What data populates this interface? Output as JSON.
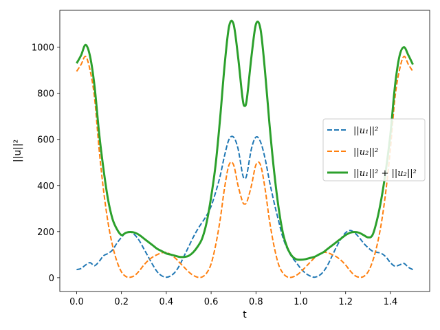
{
  "chart_data": {
    "type": "line",
    "xlabel": "t",
    "ylabel": "||u||²",
    "xlim": [
      -0.075,
      1.575
    ],
    "ylim": [
      -60,
      1160
    ],
    "xticks": [
      0.0,
      0.2,
      0.4,
      0.6,
      0.8,
      1.0,
      1.2,
      1.4
    ],
    "xtick_labels": [
      "0.0",
      "0.2",
      "0.4",
      "0.6",
      "0.8",
      "1.0",
      "1.2",
      "1.4"
    ],
    "yticks": [
      0,
      200,
      400,
      600,
      800,
      1000
    ],
    "ytick_labels": [
      "0",
      "200",
      "400",
      "600",
      "800",
      "1000"
    ],
    "grid": false,
    "legend_position": "center-right",
    "series": [
      {
        "name": "||u₁||²",
        "color": "#1f77b4",
        "style": "dashed",
        "x": [
          0.0,
          0.02,
          0.04,
          0.06,
          0.08,
          0.1,
          0.12,
          0.14,
          0.16,
          0.18,
          0.2,
          0.22,
          0.24,
          0.26,
          0.28,
          0.3,
          0.32,
          0.34,
          0.36,
          0.38,
          0.4,
          0.42,
          0.44,
          0.46,
          0.48,
          0.5,
          0.52,
          0.54,
          0.56,
          0.58,
          0.6,
          0.62,
          0.64,
          0.66,
          0.68,
          0.7,
          0.72,
          0.74,
          0.75,
          0.76,
          0.78,
          0.8,
          0.82,
          0.84,
          0.86,
          0.88,
          0.9,
          0.92,
          0.94,
          0.96,
          0.98,
          1.0,
          1.02,
          1.04,
          1.06,
          1.08,
          1.1,
          1.12,
          1.14,
          1.16,
          1.18,
          1.2,
          1.22,
          1.24,
          1.26,
          1.28,
          1.3,
          1.32,
          1.34,
          1.36,
          1.38,
          1.4,
          1.42,
          1.44,
          1.46,
          1.48,
          1.5
        ],
        "values": [
          35,
          40,
          55,
          65,
          52,
          70,
          95,
          105,
          120,
          150,
          175,
          195,
          198,
          185,
          160,
          125,
          90,
          55,
          25,
          8,
          2,
          8,
          25,
          55,
          95,
          135,
          175,
          210,
          240,
          270,
          310,
          370,
          440,
          530,
          600,
          610,
          560,
          450,
          430,
          450,
          560,
          610,
          590,
          520,
          420,
          330,
          250,
          175,
          125,
          90,
          65,
          40,
          20,
          8,
          2,
          8,
          25,
          55,
          95,
          135,
          170,
          195,
          205,
          195,
          175,
          150,
          130,
          115,
          110,
          105,
          90,
          65,
          50,
          55,
          62,
          45,
          35
        ]
      },
      {
        "name": "||u₂||²",
        "color": "#ff7f0e",
        "style": "dashed",
        "x": [
          0.0,
          0.02,
          0.04,
          0.06,
          0.08,
          0.1,
          0.12,
          0.14,
          0.16,
          0.18,
          0.2,
          0.22,
          0.24,
          0.26,
          0.28,
          0.3,
          0.32,
          0.34,
          0.36,
          0.38,
          0.4,
          0.42,
          0.44,
          0.46,
          0.48,
          0.5,
          0.52,
          0.54,
          0.56,
          0.58,
          0.6,
          0.62,
          0.64,
          0.66,
          0.68,
          0.7,
          0.72,
          0.74,
          0.75,
          0.76,
          0.78,
          0.8,
          0.82,
          0.84,
          0.86,
          0.88,
          0.9,
          0.92,
          0.94,
          0.96,
          0.98,
          1.0,
          1.02,
          1.04,
          1.06,
          1.08,
          1.1,
          1.12,
          1.14,
          1.16,
          1.18,
          1.2,
          1.22,
          1.24,
          1.26,
          1.28,
          1.3,
          1.32,
          1.34,
          1.36,
          1.38,
          1.4,
          1.42,
          1.44,
          1.46,
          1.48,
          1.5
        ],
        "values": [
          895,
          925,
          960,
          900,
          780,
          560,
          380,
          240,
          140,
          70,
          25,
          5,
          2,
          10,
          30,
          55,
          75,
          90,
          100,
          108,
          110,
          100,
          85,
          65,
          45,
          25,
          10,
          2,
          3,
          20,
          60,
          140,
          250,
          390,
          490,
          490,
          400,
          330,
          320,
          330,
          400,
          490,
          490,
          390,
          250,
          140,
          60,
          20,
          3,
          2,
          10,
          25,
          45,
          65,
          85,
          100,
          110,
          108,
          100,
          90,
          75,
          55,
          30,
          10,
          2,
          5,
          25,
          70,
          140,
          240,
          380,
          560,
          780,
          900,
          960,
          925,
          895
        ]
      },
      {
        "name": "||u₁||² + ||u₂||²",
        "color": "#2ca02c",
        "style": "solid",
        "x": [
          0.0,
          0.02,
          0.04,
          0.06,
          0.08,
          0.1,
          0.12,
          0.14,
          0.16,
          0.18,
          0.2,
          0.22,
          0.24,
          0.26,
          0.28,
          0.3,
          0.32,
          0.34,
          0.36,
          0.38,
          0.4,
          0.42,
          0.44,
          0.46,
          0.48,
          0.5,
          0.52,
          0.54,
          0.56,
          0.58,
          0.6,
          0.62,
          0.64,
          0.66,
          0.68,
          0.7,
          0.72,
          0.74,
          0.75,
          0.76,
          0.78,
          0.8,
          0.82,
          0.84,
          0.86,
          0.88,
          0.9,
          0.92,
          0.94,
          0.96,
          0.98,
          1.0,
          1.02,
          1.04,
          1.06,
          1.08,
          1.1,
          1.12,
          1.14,
          1.16,
          1.18,
          1.2,
          1.22,
          1.24,
          1.26,
          1.28,
          1.3,
          1.32,
          1.34,
          1.36,
          1.38,
          1.4,
          1.42,
          1.44,
          1.46,
          1.48,
          1.5
        ],
        "values": [
          930,
          965,
          1010,
          960,
          830,
          630,
          470,
          340,
          255,
          210,
          185,
          195,
          198,
          195,
          185,
          170,
          155,
          140,
          125,
          115,
          105,
          100,
          95,
          90,
          90,
          95,
          110,
          135,
          170,
          240,
          350,
          490,
          690,
          920,
          1090,
          1100,
          960,
          780,
          745,
          780,
          960,
          1100,
          1080,
          900,
          670,
          470,
          310,
          195,
          130,
          95,
          80,
          78,
          80,
          85,
          90,
          100,
          110,
          125,
          140,
          155,
          170,
          185,
          195,
          198,
          195,
          185,
          175,
          185,
          250,
          345,
          470,
          625,
          830,
          960,
          1000,
          965,
          925
        ]
      }
    ]
  }
}
